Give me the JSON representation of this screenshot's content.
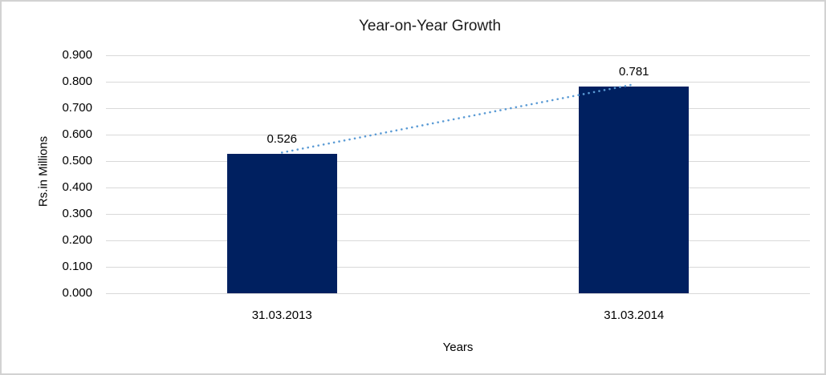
{
  "chart_data": {
    "type": "bar",
    "title": "Year-on-Year Growth",
    "xlabel": "Years",
    "ylabel": "Rs.in Millions",
    "categories": [
      "31.03.2013",
      "31.03.2014"
    ],
    "values": [
      0.526,
      0.781
    ],
    "data_labels": [
      "0.526",
      "0.781"
    ],
    "ylim": [
      0,
      0.9
    ],
    "ytick_step": 0.1,
    "ytick_format_decimals": 3,
    "grid": "horizontal",
    "legend": "none",
    "bar_color": "#002060",
    "gridline_color": "#d9d9d9",
    "trendline": {
      "style": "dotted",
      "color": "#5b9bd5",
      "connects": "tops of the two bars"
    }
  }
}
